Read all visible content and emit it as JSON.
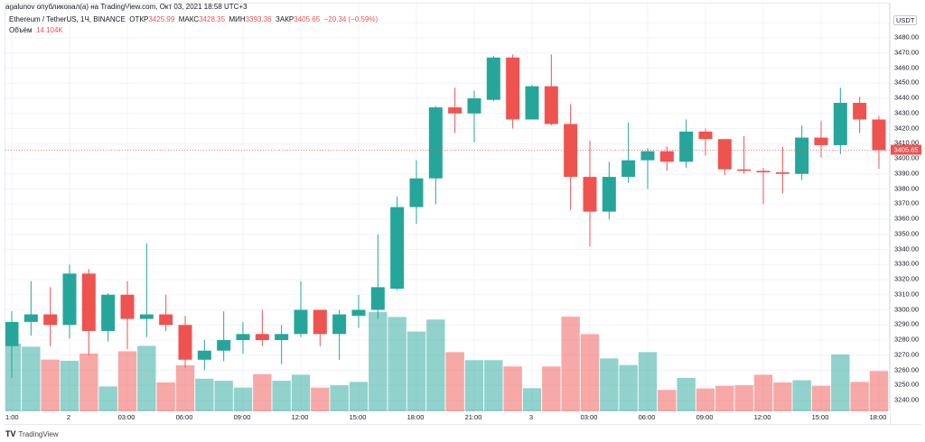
{
  "header": {
    "published": "agalunov опубликовал(а) на TradingView.com, Окт 03, 2021 18:58 UTC+3"
  },
  "legend": {
    "symbol": "Ethereum / TetherUS, 1Ч, BINANCE",
    "open_label": "ОТКР",
    "open": "3425.99",
    "high_label": "МАКС",
    "high": "3428.35",
    "low_label": "МИН",
    "low": "3393.36",
    "close_label": "ЗАКР",
    "close": "3405.65",
    "change": "−20.34 (−0.59%)",
    "volume_label": "Объём",
    "volume": "14.104K"
  },
  "footer": {
    "brand": "TradingView",
    "logo_icon": "tradingview-logo-icon"
  },
  "colors": {
    "up": "#26a69a",
    "down": "#ef5350"
  },
  "chart_data": {
    "type": "candlestick",
    "currency": "USDT",
    "current_price": "3405.65",
    "ylim": [
      3240,
      3480
    ],
    "y_ticks": [
      3480,
      3470,
      3460,
      3450,
      3440,
      3430,
      3420,
      3410,
      3400,
      3390,
      3380,
      3370,
      3360,
      3350,
      3340,
      3330,
      3320,
      3310,
      3300,
      3290,
      3280,
      3270,
      3260,
      3250,
      3240
    ],
    "x_tick_labels": [
      "1:00",
      "2",
      "03:00",
      "06:00",
      "09:00",
      "12:00",
      "15:00",
      "18:00",
      "21:00",
      "3",
      "03:00",
      "06:00",
      "09:00",
      "12:00",
      "15:00",
      "18:00"
    ],
    "grid": true,
    "candles": [
      [
        3276,
        3299,
        3255,
        3292
      ],
      [
        3292,
        3319,
        3283,
        3297
      ],
      [
        3297,
        3315,
        3276,
        3290
      ],
      [
        3290,
        3330,
        3281,
        3324
      ],
      [
        3324,
        3327,
        3270,
        3286
      ],
      [
        3286,
        3311,
        3279,
        3310
      ],
      [
        3310,
        3319,
        3274,
        3294
      ],
      [
        3294,
        3344,
        3282,
        3297
      ],
      [
        3297,
        3310,
        3286,
        3290
      ],
      [
        3290,
        3296,
        3262,
        3267
      ],
      [
        3267,
        3280,
        3260,
        3273
      ],
      [
        3273,
        3299,
        3266,
        3280
      ],
      [
        3280,
        3292,
        3271,
        3284
      ],
      [
        3284,
        3300,
        3276,
        3280
      ],
      [
        3280,
        3290,
        3264,
        3284
      ],
      [
        3284,
        3319,
        3282,
        3300
      ],
      [
        3300,
        3300,
        3276,
        3284
      ],
      [
        3284,
        3300,
        3267,
        3297
      ],
      [
        3296,
        3310,
        3288,
        3300
      ],
      [
        3300,
        3350,
        3294,
        3315
      ],
      [
        3314,
        3375,
        3313,
        3368
      ],
      [
        3368,
        3399,
        3357,
        3387
      ],
      [
        3387,
        3435,
        3370,
        3434
      ],
      [
        3434,
        3447,
        3417,
        3430
      ],
      [
        3430,
        3445,
        3411,
        3440
      ],
      [
        3439,
        3468,
        3438,
        3467
      ],
      [
        3467,
        3469,
        3420,
        3426
      ],
      [
        3426,
        3449,
        3426,
        3448
      ],
      [
        3448,
        3469,
        3422,
        3423
      ],
      [
        3423,
        3436,
        3366,
        3388
      ],
      [
        3388,
        3412,
        3342,
        3365
      ],
      [
        3365,
        3398,
        3360,
        3388
      ],
      [
        3388,
        3424,
        3384,
        3399
      ],
      [
        3399,
        3407,
        3380,
        3405
      ],
      [
        3405,
        3408,
        3392,
        3398
      ],
      [
        3398,
        3426,
        3394,
        3418
      ],
      [
        3418,
        3420,
        3402,
        3413
      ],
      [
        3413,
        3413,
        3389,
        3393
      ],
      [
        3393,
        3415,
        3390,
        3392
      ],
      [
        3392,
        3394,
        3370,
        3391
      ],
      [
        3391,
        3408,
        3377,
        3390
      ],
      [
        3390,
        3422,
        3386,
        3414
      ],
      [
        3414,
        3425,
        3401,
        3409
      ],
      [
        3409,
        3447,
        3403,
        3437
      ],
      [
        3437,
        3441,
        3417,
        3426
      ],
      [
        3425.99,
        3428.35,
        3393.36,
        3405.65
      ]
    ],
    "candle_fields": [
      "open",
      "high",
      "low",
      "close"
    ],
    "volume_k": [
      23.7,
      22.6,
      18.1,
      17.7,
      20.2,
      8.7,
      21.0,
      22.9,
      10.1,
      16.1,
      11.4,
      10.7,
      8.3,
      13.0,
      10.7,
      12.8,
      8.3,
      9.1,
      10.3,
      34.7,
      33.0,
      27.9,
      32.1,
      20.7,
      17.9,
      17.9,
      15.7,
      8.1,
      15.7,
      33.1,
      27.0,
      18.5,
      16.2,
      20.7,
      7.5,
      11.7,
      8.0,
      8.9,
      9.1,
      12.8,
      10.1,
      10.9,
      8.9,
      19.9,
      10.3,
      14.104
    ]
  }
}
